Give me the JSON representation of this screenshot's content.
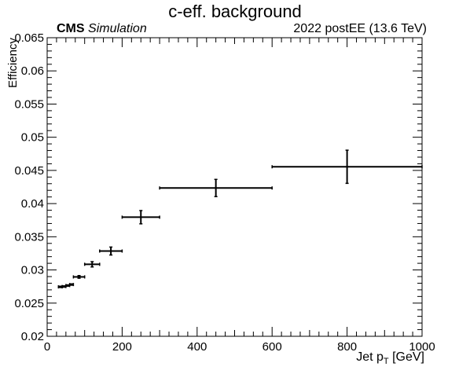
{
  "header": {
    "title": "c-eff. background",
    "cms_bold": "CMS",
    "cms_italic": "Simulation",
    "lumi": "2022 postEE (13.6 TeV)"
  },
  "axes": {
    "xlabel_main": "Jet p",
    "xlabel_sub": "T",
    "xlabel_unit": " [GeV]",
    "ylabel": "Efficiency"
  },
  "chart_data": {
    "type": "scatter",
    "title": "c-eff. background",
    "xlabel": "Jet pT [GeV]",
    "ylabel": "Efficiency",
    "xlim": [
      0,
      1000
    ],
    "ylim": [
      0.02,
      0.065
    ],
    "x_ticks": [
      "0",
      "200",
      "400",
      "600",
      "800",
      "1000"
    ],
    "y_ticks": [
      "0.02",
      "0.025",
      "0.03",
      "0.035",
      "0.04",
      "0.045",
      "0.05",
      "0.055",
      "0.06",
      "0.065"
    ],
    "grid": false,
    "points": [
      {
        "x": 35,
        "x_low": 30,
        "x_high": 40,
        "y": 0.02745,
        "y_err": 0.0001
      },
      {
        "x": 45,
        "x_low": 40,
        "x_high": 50,
        "y": 0.0275,
        "y_err": 0.0001
      },
      {
        "x": 55,
        "x_low": 50,
        "x_high": 60,
        "y": 0.02765,
        "y_err": 0.0001
      },
      {
        "x": 65,
        "x_low": 60,
        "x_high": 70,
        "y": 0.0278,
        "y_err": 0.0001
      },
      {
        "x": 85,
        "x_low": 70,
        "x_high": 100,
        "y": 0.02895,
        "y_err": 0.0002
      },
      {
        "x": 120,
        "x_low": 100,
        "x_high": 140,
        "y": 0.03085,
        "y_err": 0.0004
      },
      {
        "x": 170,
        "x_low": 140,
        "x_high": 200,
        "y": 0.03285,
        "y_err": 0.0006
      },
      {
        "x": 250,
        "x_low": 200,
        "x_high": 300,
        "y": 0.03795,
        "y_err": 0.001
      },
      {
        "x": 450,
        "x_low": 300,
        "x_high": 600,
        "y": 0.04235,
        "y_err": 0.0013
      },
      {
        "x": 800,
        "x_low": 600,
        "x_high": 1000,
        "y": 0.04555,
        "y_err": 0.0025
      }
    ]
  }
}
